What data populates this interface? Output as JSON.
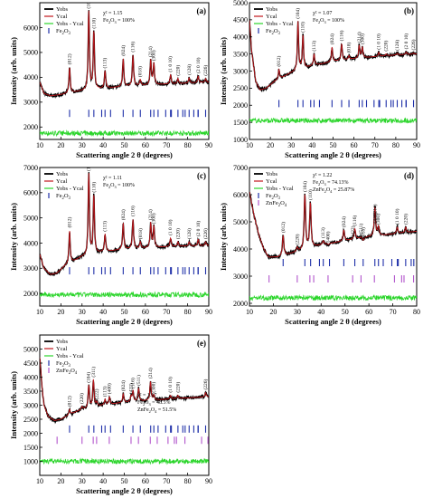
{
  "colors": {
    "obs": "#000000",
    "calc": "#c0161b",
    "diff": "#2bd52b",
    "fe2o3_bragg": "#1e2fa8",
    "znfe2o4_bragg": "#b255cc"
  },
  "chart_data": [
    {
      "type": "line",
      "panel_label": "(a)",
      "xlabel": "Scattering angle 2 θ (degrees)",
      "ylabel": "Intensity (arb. units)",
      "xlim": [
        10,
        90
      ],
      "ylim": [
        1500,
        7000
      ],
      "xticks": [
        10,
        20,
        30,
        40,
        50,
        60,
        70,
        80,
        90
      ],
      "yticks": [
        2000,
        3000,
        4000,
        5000,
        6000
      ],
      "legend": [
        "Yobs",
        "Ycal",
        "Yobs - Ycal",
        "Fe2O3"
      ],
      "annotations": [
        "χ² = 1.15",
        "Fe2O3 = 100%"
      ],
      "background": [
        [
          10,
          3800
        ],
        [
          12,
          3350
        ],
        [
          15,
          3250
        ],
        [
          20,
          3300
        ],
        [
          25,
          3380
        ],
        [
          30,
          3450
        ],
        [
          40,
          3550
        ],
        [
          50,
          3620
        ],
        [
          60,
          3680
        ],
        [
          70,
          3720
        ],
        [
          80,
          3760
        ],
        [
          90,
          3800
        ]
      ],
      "peaks": [
        {
          "hkl": "(012)",
          "x": 24.1,
          "y": 4400
        },
        {
          "hkl": "(104)",
          "x": 33.2,
          "y": 6650
        },
        {
          "hkl": "(110)",
          "x": 35.6,
          "y": 5850
        },
        {
          "hkl": "(113)",
          "x": 40.9,
          "y": 4250
        },
        {
          "hkl": "(024)",
          "x": 49.5,
          "y": 4750
        },
        {
          "hkl": "(116)",
          "x": 54.1,
          "y": 4900
        },
        {
          "hkl": "(018)",
          "x": 57.6,
          "y": 3900
        },
        {
          "hkl": "(214)",
          "x": 62.5,
          "y": 4700
        },
        {
          "hkl": "(300)",
          "x": 64.0,
          "y": 4550
        },
        {
          "hkl": "(1 0 10)",
          "x": 71.9,
          "y": 4100
        },
        {
          "hkl": "(220)",
          "x": 75.4,
          "y": 3950
        },
        {
          "hkl": "(128)",
          "x": 80.7,
          "y": 3980
        },
        {
          "hkl": "(2 0 10)",
          "x": 85.0,
          "y": 4050
        },
        {
          "hkl": "(226)",
          "x": 88.5,
          "y": 3950
        }
      ],
      "bragg_rows": [
        {
          "phase": "Fe2O3",
          "y": 2550,
          "positions": [
            24.1,
            33.2,
            35.6,
            39.3,
            40.9,
            43.5,
            49.5,
            54.1,
            57.6,
            62.5,
            64.0,
            66.0,
            69.6,
            71.9,
            72.3,
            75.4,
            77.7,
            78.8,
            80.7,
            82.9,
            84.9,
            85.0,
            88.5
          ]
        }
      ],
      "diff_level": 1750
    },
    {
      "type": "line",
      "panel_label": "(b)",
      "xlabel": "Scattering angle 2 θ (degrees)",
      "ylabel": "Intensity (arb. units)",
      "xlim": [
        10,
        90
      ],
      "ylim": [
        1000,
        5000
      ],
      "xticks": [
        10,
        20,
        30,
        40,
        50,
        60,
        70,
        80,
        90
      ],
      "yticks": [
        1000,
        1500,
        2000,
        2500,
        3000,
        3500,
        4000,
        4500,
        5000
      ],
      "legend": [
        "Yobs",
        "Ycal",
        "Yobs - Ycal",
        "Fe2O3"
      ],
      "annotations": [
        "χ² = 1.07",
        "Fe2O3 = 100%"
      ],
      "background": [
        [
          10,
          4500
        ],
        [
          11,
          3600
        ],
        [
          13,
          2700
        ],
        [
          15,
          2450
        ],
        [
          18,
          2500
        ],
        [
          22,
          2700
        ],
        [
          30,
          2950
        ],
        [
          40,
          3150
        ],
        [
          50,
          3280
        ],
        [
          60,
          3360
        ],
        [
          70,
          3420
        ],
        [
          80,
          3470
        ],
        [
          90,
          3500
        ]
      ],
      "peaks": [
        {
          "hkl": "(012)",
          "x": 24.1,
          "y": 3050
        },
        {
          "hkl": "(104)",
          "x": 33.2,
          "y": 4450
        },
        {
          "hkl": "(110)",
          "x": 35.6,
          "y": 4050
        },
        {
          "hkl": "(113)",
          "x": 40.9,
          "y": 3500
        },
        {
          "hkl": "(024)",
          "x": 49.5,
          "y": 3700
        },
        {
          "hkl": "(116)",
          "x": 54.1,
          "y": 3800
        },
        {
          "hkl": "(018)",
          "x": 57.6,
          "y": 3450
        },
        {
          "hkl": "(214)",
          "x": 62.5,
          "y": 3750
        },
        {
          "hkl": "(300)",
          "x": 64.0,
          "y": 3700
        },
        {
          "hkl": "(1 0 10)",
          "x": 71.9,
          "y": 3550
        },
        {
          "hkl": "(220)",
          "x": 75.4,
          "y": 3500
        },
        {
          "hkl": "(128)",
          "x": 80.7,
          "y": 3520
        },
        {
          "hkl": "(2 0 10)",
          "x": 85.0,
          "y": 3560
        },
        {
          "hkl": "(226)",
          "x": 88.5,
          "y": 3530
        }
      ],
      "bragg_rows": [
        {
          "phase": "Fe2O3",
          "y": 2050,
          "positions": [
            24.1,
            33.2,
            35.6,
            39.3,
            40.9,
            43.5,
            49.5,
            54.1,
            57.6,
            62.5,
            64.0,
            66.0,
            69.6,
            71.9,
            72.3,
            75.4,
            77.7,
            78.8,
            80.7,
            82.9,
            84.9,
            85.0,
            88.5
          ]
        }
      ],
      "diff_level": 1550
    },
    {
      "type": "line",
      "panel_label": "(c)",
      "xlabel": "Scattering angle 2 θ (degrees)",
      "ylabel": "Intensity (arb. units)",
      "xlim": [
        10,
        90
      ],
      "ylim": [
        1500,
        7000
      ],
      "xticks": [
        10,
        20,
        30,
        40,
        50,
        60,
        70,
        80,
        90
      ],
      "yticks": [
        2000,
        3000,
        4000,
        5000,
        6000,
        7000
      ],
      "legend": [
        "Yobs",
        "Ycal",
        "Yobs - Ycal",
        "Fe2O3"
      ],
      "annotations": [
        "χ² = 1.11",
        "Fe2O3 = 100%"
      ],
      "background": [
        [
          10,
          3550
        ],
        [
          12,
          3000
        ],
        [
          15,
          2750
        ],
        [
          18,
          2800
        ],
        [
          22,
          3100
        ],
        [
          30,
          3450
        ],
        [
          40,
          3650
        ],
        [
          50,
          3750
        ],
        [
          60,
          3800
        ],
        [
          70,
          3850
        ],
        [
          80,
          3880
        ],
        [
          90,
          3900
        ]
      ],
      "peaks": [
        {
          "hkl": "(012)",
          "x": 24.1,
          "y": 4500
        },
        {
          "hkl": "(104)",
          "x": 33.2,
          "y": 6750
        },
        {
          "hkl": "(110)",
          "x": 35.6,
          "y": 5900
        },
        {
          "hkl": "(113)",
          "x": 40.9,
          "y": 4350
        },
        {
          "hkl": "(024)",
          "x": 49.5,
          "y": 4800
        },
        {
          "hkl": "(116)",
          "x": 54.1,
          "y": 4950
        },
        {
          "hkl": "(018)",
          "x": 57.6,
          "y": 4050
        },
        {
          "hkl": "(214)",
          "x": 62.5,
          "y": 4800
        },
        {
          "hkl": "(300)",
          "x": 64.0,
          "y": 4650
        },
        {
          "hkl": "(1 0 10)",
          "x": 71.9,
          "y": 4200
        },
        {
          "hkl": "(220)",
          "x": 75.4,
          "y": 4050
        },
        {
          "hkl": "(128)",
          "x": 80.7,
          "y": 4050
        },
        {
          "hkl": "(2 0 10)",
          "x": 85.0,
          "y": 4150
        },
        {
          "hkl": "(226)",
          "x": 88.5,
          "y": 4050
        }
      ],
      "bragg_rows": [
        {
          "phase": "Fe2O3",
          "y": 2900,
          "positions": [
            24.1,
            33.2,
            35.6,
            39.3,
            40.9,
            43.5,
            49.5,
            54.1,
            57.6,
            62.5,
            64.0,
            66.0,
            69.6,
            71.9,
            72.3,
            75.4,
            77.7,
            78.8,
            80.7,
            82.9,
            84.9,
            85.0,
            88.5
          ]
        }
      ],
      "diff_level": 1950
    },
    {
      "type": "line",
      "panel_label": "(d)",
      "xlabel": "Scattering angle 2 θ (degrees)",
      "ylabel": "Intensity (arb. units)",
      "xlim": [
        10,
        80
      ],
      "ylim": [
        1900,
        7000
      ],
      "xticks": [
        10,
        20,
        30,
        40,
        50,
        60,
        70,
        80
      ],
      "yticks": [
        2000,
        3000,
        4000,
        5000,
        6000,
        7000
      ],
      "legend": [
        "Yobs",
        "Ycal",
        "Yobs - Ycal",
        "Fe2O3",
        "ZnFe2O4"
      ],
      "annotations": [
        "χ² = 1.22",
        "Fe2O3 = 74.13%",
        "ZnFe2O4 = 25.87%"
      ],
      "background": [
        [
          10,
          6100
        ],
        [
          12,
          5200
        ],
        [
          14,
          4500
        ],
        [
          16,
          4000
        ],
        [
          18,
          3700
        ],
        [
          22,
          3700
        ],
        [
          30,
          3900
        ],
        [
          40,
          4150
        ],
        [
          50,
          4300
        ],
        [
          60,
          4450
        ],
        [
          70,
          4550
        ],
        [
          80,
          4650
        ]
      ],
      "peaks": [
        {
          "hkl": "(012)",
          "x": 24.1,
          "y": 4500
        },
        {
          "hkl": "(220)",
          "x": 30.0,
          "y": 4050
        },
        {
          "hkl": "(104)",
          "x": 33.2,
          "y": 6000
        },
        {
          "hkl": "(110)",
          "x": 35.5,
          "y": 5700
        },
        {
          "hkl": "(113)",
          "x": 40.9,
          "y": 4300
        },
        {
          "hkl": "(400)",
          "x": 43.0,
          "y": 4150
        },
        {
          "hkl": "(024)",
          "x": 49.5,
          "y": 4700
        },
        {
          "hkl": "(422)",
          "x": 53.3,
          "y": 4350
        },
        {
          "hkl": "(116)",
          "x": 54.1,
          "y": 4750
        },
        {
          "hkl": "(511)",
          "x": 56.8,
          "y": 4450
        },
        {
          "hkl": "(018)",
          "x": 57.6,
          "y": 4300
        },
        {
          "hkl": "(214)",
          "x": 62.5,
          "y": 5150
        },
        {
          "hkl": "(440)",
          "x": 62.5,
          "y": 4850
        },
        {
          "hkl": "(300)",
          "x": 64.0,
          "y": 4800
        },
        {
          "hkl": "(1 0 10)",
          "x": 71.9,
          "y": 4800
        },
        {
          "hkl": "(220)",
          "x": 75.4,
          "y": 4800
        }
      ],
      "bragg_rows": [
        {
          "phase": "Fe2O3",
          "y": 3500,
          "positions": [
            24.1,
            33.2,
            35.6,
            39.3,
            40.9,
            43.5,
            49.5,
            54.1,
            57.6,
            62.5,
            64.0,
            66.0,
            69.6,
            71.9,
            72.3,
            75.4,
            77.7,
            78.8
          ]
        },
        {
          "phase": "ZnFe2O4",
          "y": 2900,
          "positions": [
            18.2,
            30.0,
            35.3,
            36.9,
            42.9,
            53.2,
            56.7,
            62.3,
            70.7,
            73.7,
            74.7,
            78.7
          ]
        }
      ],
      "diff_level": 2200
    },
    {
      "type": "line",
      "panel_label": "(e)",
      "xlabel": "Scattering angle 2 θ (degrees)",
      "ylabel": "Intensity (arb. units)",
      "xlim": [
        10,
        90
      ],
      "ylim": [
        500,
        5500
      ],
      "xticks": [
        10,
        20,
        30,
        40,
        50,
        60,
        70,
        80,
        90
      ],
      "yticks": [
        1000,
        1500,
        2000,
        2500,
        3000,
        3500,
        4000,
        4500,
        5000
      ],
      "legend": [
        "Yobs",
        "Ycal",
        "Yobs - Ycal",
        "Fe2O3",
        "ZnFe2O4"
      ],
      "annotations": [
        "χ² = 1.17",
        "Fe2O3 = 48.5%",
        "ZnFe2O4 = 51.5%"
      ],
      "background": [
        [
          10,
          4700
        ],
        [
          11,
          3700
        ],
        [
          12,
          3000
        ],
        [
          14,
          2600
        ],
        [
          17,
          2450
        ],
        [
          20,
          2500
        ],
        [
          25,
          2700
        ],
        [
          30,
          2850
        ],
        [
          40,
          3000
        ],
        [
          50,
          3100
        ],
        [
          60,
          3160
        ],
        [
          70,
          3210
        ],
        [
          80,
          3260
        ],
        [
          90,
          3300
        ]
      ],
      "peaks": [
        {
          "hkl": "(012)",
          "x": 24.1,
          "y": 2850
        },
        {
          "hkl": "(220)",
          "x": 30.0,
          "y": 2950
        },
        {
          "hkl": "(104)",
          "x": 33.2,
          "y": 3700
        },
        {
          "hkl": "(311)",
          "x": 35.4,
          "y": 3900
        },
        {
          "hkl": "(222)",
          "x": 37.0,
          "y": 3100
        },
        {
          "hkl": "(113)",
          "x": 40.9,
          "y": 3200
        },
        {
          "hkl": "(400)",
          "x": 43.0,
          "y": 3300
        },
        {
          "hkl": "(024)",
          "x": 49.5,
          "y": 3400
        },
        {
          "hkl": "(422)",
          "x": 53.2,
          "y": 3300
        },
        {
          "hkl": "(116)",
          "x": 54.1,
          "y": 3500
        },
        {
          "hkl": "(511)",
          "x": 56.8,
          "y": 3600
        },
        {
          "hkl": "(214)",
          "x": 62.4,
          "y": 3850
        },
        {
          "hkl": "(300)",
          "x": 64.0,
          "y": 3350
        },
        {
          "hkl": "(1 0 10)",
          "x": 71.9,
          "y": 3350
        },
        {
          "hkl": "(220)",
          "x": 75.4,
          "y": 3350
        },
        {
          "hkl": "(226)",
          "x": 88.5,
          "y": 3450
        }
      ],
      "bragg_rows": [
        {
          "phase": "Fe2O3",
          "y": 2150,
          "positions": [
            24.1,
            33.2,
            35.6,
            39.3,
            40.9,
            43.5,
            49.5,
            54.1,
            57.6,
            62.5,
            64.0,
            66.0,
            69.6,
            71.9,
            72.3,
            75.4,
            77.7,
            78.8,
            80.7,
            82.9,
            84.9,
            85.0,
            88.5
          ]
        },
        {
          "phase": "ZnFe2O4",
          "y": 1750,
          "positions": [
            18.2,
            30.0,
            35.3,
            36.9,
            42.9,
            53.2,
            56.7,
            62.3,
            65.6,
            70.7,
            73.7,
            74.7,
            78.7,
            86.6,
            89.6
          ]
        }
      ],
      "diff_level": 1000
    }
  ]
}
